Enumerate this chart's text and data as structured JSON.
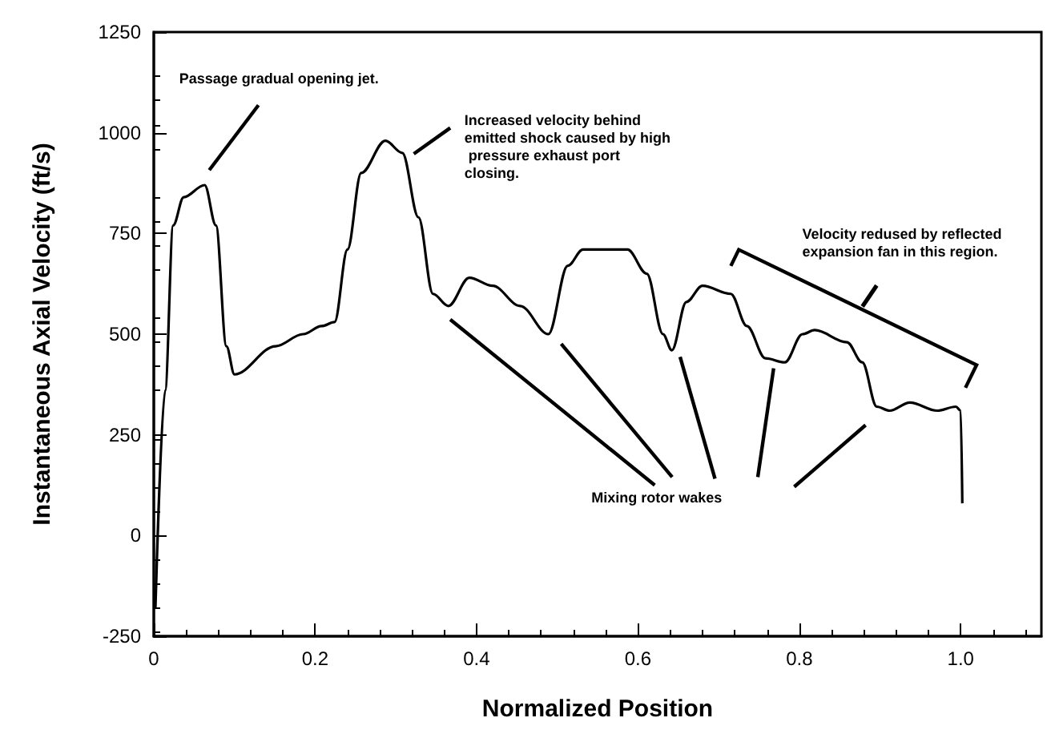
{
  "chart_data": {
    "type": "line",
    "xlabel": "Normalized Position",
    "ylabel": "Instantaneous Axial Velocity (ft/s)",
    "xlim": [
      0,
      1.1
    ],
    "xticks": [
      0,
      0.2,
      0.4,
      0.6,
      0.8,
      {
        "value": 1,
        "label": "1.0"
      }
    ],
    "ylim": [
      -250,
      1250
    ],
    "yticks": [
      -250,
      0,
      250,
      500,
      750,
      1000,
      1250
    ],
    "grid": false,
    "marker": "none",
    "line_style": "solid",
    "series": [
      {
        "color": "#000000",
        "x": [
          0.002,
          0.014,
          0.024,
          0.037,
          0.063,
          0.077,
          0.09,
          0.1,
          0.151,
          0.185,
          0.208,
          0.224,
          0.24,
          0.257,
          0.287,
          0.308,
          0.328,
          0.346,
          0.365,
          0.391,
          0.42,
          0.454,
          0.489,
          0.513,
          0.532,
          0.587,
          0.611,
          0.631,
          0.642,
          0.66,
          0.68,
          0.715,
          0.735,
          0.758,
          0.782,
          0.804,
          0.819,
          0.859,
          0.878,
          0.896,
          0.912,
          0.937,
          0.971,
          0.994,
          1.0,
          1.002
        ],
        "values": [
          -180,
          360,
          770,
          840,
          870,
          770,
          470,
          400,
          470,
          500,
          520,
          530,
          710,
          900,
          980,
          950,
          790,
          600,
          570,
          640,
          620,
          570,
          500,
          670,
          710,
          710,
          650,
          500,
          460,
          580,
          620,
          600,
          520,
          440,
          430,
          500,
          510,
          480,
          430,
          320,
          310,
          330,
          310,
          320,
          310,
          80
        ]
      }
    ],
    "annotations": [
      "Passage gradual opening jet.",
      "Increased velocity behind emitted shock caused by high pressure exhaust port closing.",
      "Velocity redused by reflected expansion fan in this region.",
      "Mixing rotor wakes"
    ]
  }
}
